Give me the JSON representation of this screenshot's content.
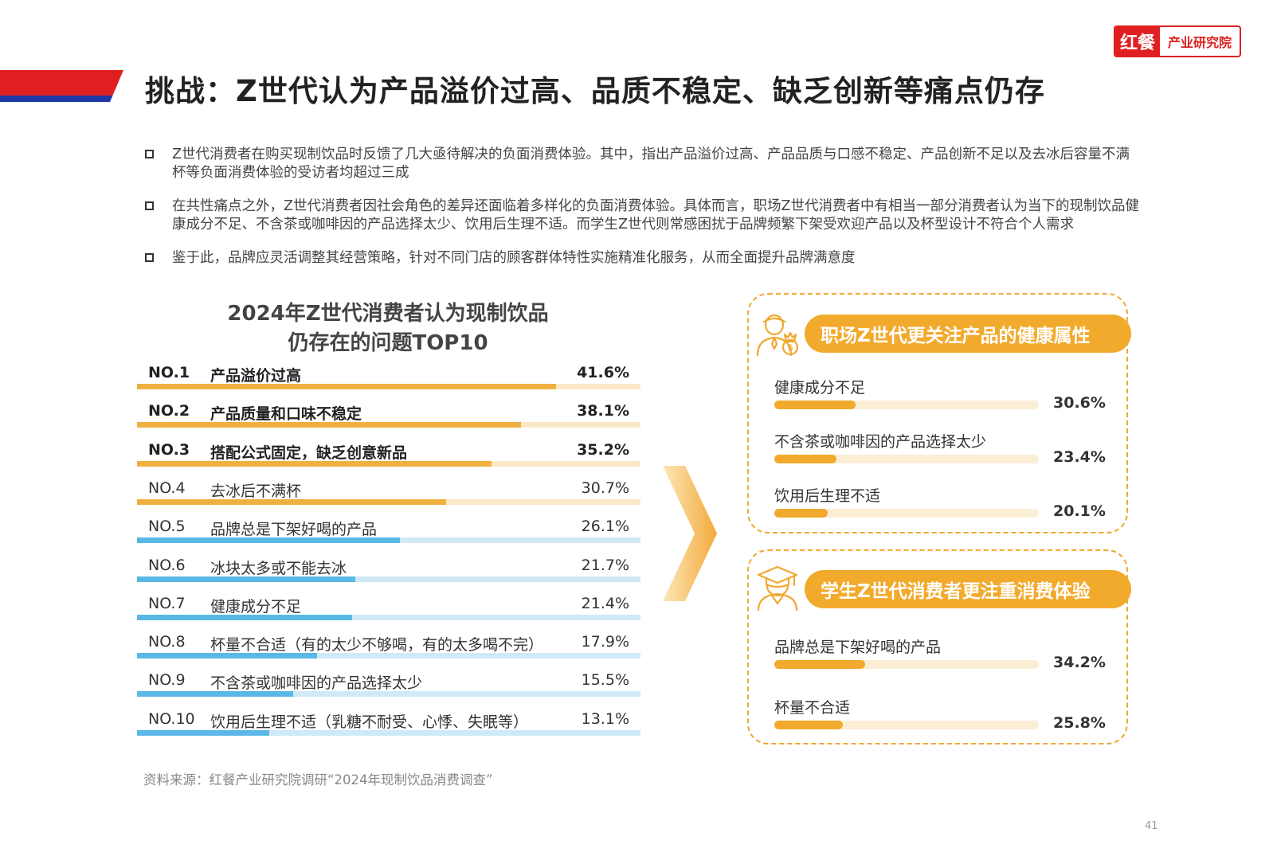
{
  "header": {
    "title": "挑战：Z世代认为产品溢价过高、品质不稳定、缺乏创新等痛点仍存",
    "logo_brand": "红餐",
    "logo_sub": "产业研究院",
    "colors": {
      "red": "#e02020",
      "blue": "#1e3aa8"
    }
  },
  "bullets": [
    "Z世代消费者在购买现制饮品时反馈了几大亟待解决的负面消费体验。其中，指出产品溢价过高、产品品质与口感不稳定、产品创新不足以及去冰后容量不满杯等负面消费体验的受访者均超过三成",
    "在共性痛点之外，Z世代消费者因社会角色的差异还面临着多样化的负面消费体验。具体而言，职场Z世代消费者中有相当一部分消费者认为当下的现制饮品健康成分不足、不含茶或咖啡因的产品选择太少、饮用后生理不适。而学生Z世代则常感困扰于品牌频繁下架受欢迎产品以及杯型设计不符合个人需求",
    "鉴于此，品牌应灵活调整其经营策略，针对不同门店的顾客群体特性实施精准化服务，从而全面提升品牌满意度"
  ],
  "chart_data": [
    {
      "type": "bar",
      "title_line1": "2024年Z世代消费者认为现制饮品",
      "title_line2": "仍存在的问题TOP10",
      "ylim": [
        0,
        50
      ],
      "items": [
        {
          "rank": "NO.1",
          "label": "产品溢价过高",
          "value": 41.6,
          "value_text": "41.6%",
          "highlight": true
        },
        {
          "rank": "NO.2",
          "label": "产品质量和口味不稳定",
          "value": 38.1,
          "value_text": "38.1%",
          "highlight": true
        },
        {
          "rank": "NO.3",
          "label": "搭配公式固定，缺乏创意新品",
          "value": 35.2,
          "value_text": "35.2%",
          "highlight": true
        },
        {
          "rank": "NO.4",
          "label": "去冰后不满杯",
          "value": 30.7,
          "value_text": "30.7%",
          "highlight": false,
          "color_group": "orange"
        },
        {
          "rank": "NO.5",
          "label": "品牌总是下架好喝的产品",
          "value": 26.1,
          "value_text": "26.1%",
          "highlight": false
        },
        {
          "rank": "NO.6",
          "label": "冰块太多或不能去冰",
          "value": 21.7,
          "value_text": "21.7%",
          "highlight": false
        },
        {
          "rank": "NO.7",
          "label": "健康成分不足",
          "value": 21.4,
          "value_text": "21.4%",
          "highlight": false
        },
        {
          "rank": "NO.8",
          "label": "杯量不合适（有的太少不够喝，有的太多喝不完）",
          "value": 17.9,
          "value_text": "17.9%",
          "highlight": false
        },
        {
          "rank": "NO.9",
          "label": "不含茶或咖啡因的产品选择太少",
          "value": 15.5,
          "value_text": "15.5%",
          "highlight": false
        },
        {
          "rank": "NO.10",
          "label": "饮用后生理不适（乳糖不耐受、心悸、失眠等）",
          "value": 13.1,
          "value_text": "13.1%",
          "highlight": false
        }
      ],
      "colors": {
        "orange": "#f0b040",
        "orange_track": "#fbe8c6",
        "blue": "#5ab8e6",
        "blue_track": "#cfe9f6"
      }
    },
    {
      "type": "bar",
      "title": "职场Z世代更关注产品的健康属性",
      "ylim": [
        0,
        100
      ],
      "items": [
        {
          "label": "健康成分不足",
          "value": 30.6,
          "value_text": "30.6%"
        },
        {
          "label": "不含茶或咖啡因的产品选择太少",
          "value": 23.4,
          "value_text": "23.4%"
        },
        {
          "label": "饮用后生理不适",
          "value": 20.1,
          "value_text": "20.1%"
        }
      ]
    },
    {
      "type": "bar",
      "title": "学生Z世代消费者更注重消费体验",
      "ylim": [
        0,
        100
      ],
      "items": [
        {
          "label": "品牌总是下架好喝的产品",
          "value": 34.2,
          "value_text": "34.2%"
        },
        {
          "label": "杯量不合适",
          "value": 25.8,
          "value_text": "25.8%"
        }
      ]
    }
  ],
  "panels": {
    "icons": [
      "office-worker-icon",
      "graduate-icon"
    ],
    "colors": {
      "accent": "#f2aa2c",
      "track": "#fbeed5",
      "border": "#f0a830"
    }
  },
  "footer": {
    "source": "资料来源：红餐产业研究院调研“2024年现制饮品消费调查”",
    "page_number": "41"
  }
}
